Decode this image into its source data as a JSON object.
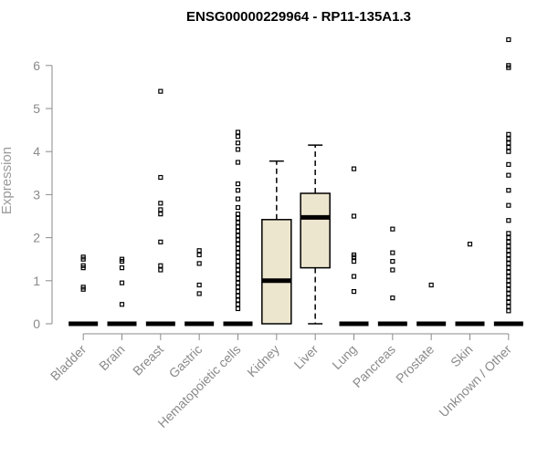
{
  "chart_data": {
    "type": "box",
    "title": "ENSG00000229964 - RP11-135A1.3",
    "xlabel": "",
    "ylabel": "Expression",
    "ylim": [
      0,
      6.7
    ],
    "yticks": [
      0,
      1,
      2,
      3,
      4,
      5,
      6
    ],
    "grid": false,
    "categories": [
      "Bladder",
      "Brain",
      "Breast",
      "Gastric",
      "Hematopoietic cells",
      "Kidney",
      "Liver",
      "Lung",
      "Pancreas",
      "Prostate",
      "Skin",
      "Unknown / Other"
    ],
    "boxes": [
      {
        "category": "Bladder",
        "q1": 0,
        "median": 0,
        "q3": 0,
        "whisker_low": 0,
        "whisker_high": 0,
        "outliers": [
          0.8,
          0.85,
          1.3,
          1.35,
          1.5,
          1.55
        ]
      },
      {
        "category": "Brain",
        "q1": 0,
        "median": 0,
        "q3": 0,
        "whisker_low": 0,
        "whisker_high": 0,
        "outliers": [
          0.45,
          0.95,
          1.3,
          1.45,
          1.5
        ]
      },
      {
        "category": "Breast",
        "q1": 0,
        "median": 0,
        "q3": 0,
        "whisker_low": 0,
        "whisker_high": 0,
        "outliers": [
          1.25,
          1.35,
          1.9,
          2.55,
          2.65,
          2.8,
          3.4,
          5.4
        ]
      },
      {
        "category": "Gastric",
        "q1": 0,
        "median": 0,
        "q3": 0,
        "whisker_low": 0,
        "whisker_high": 0,
        "outliers": [
          0.7,
          0.9,
          1.4,
          1.6,
          1.7
        ]
      },
      {
        "category": "Hematopoietic cells",
        "q1": 0,
        "median": 0,
        "q3": 0,
        "whisker_low": 0,
        "whisker_high": 0,
        "outliers": [
          0.35,
          0.45,
          0.55,
          0.65,
          0.75,
          0.85,
          0.95,
          1.05,
          1.15,
          1.25,
          1.35,
          1.45,
          1.55,
          1.65,
          1.75,
          1.85,
          1.95,
          2.05,
          2.15,
          2.25,
          2.35,
          2.45,
          2.55,
          2.7,
          2.9,
          3.1,
          3.25,
          3.75,
          4.05,
          4.2,
          4.35,
          4.45
        ]
      },
      {
        "category": "Kidney",
        "q1": 0,
        "median": 1.0,
        "q3": 2.42,
        "whisker_low": 0,
        "whisker_high": 3.78,
        "outliers": []
      },
      {
        "category": "Liver",
        "q1": 1.3,
        "median": 2.47,
        "q3": 3.03,
        "whisker_low": 0,
        "whisker_high": 4.15,
        "outliers": []
      },
      {
        "category": "Lung",
        "q1": 0,
        "median": 0,
        "q3": 0,
        "whisker_low": 0,
        "whisker_high": 0,
        "outliers": [
          0.75,
          1.1,
          1.45,
          1.55,
          1.6,
          2.5,
          3.6
        ]
      },
      {
        "category": "Pancreas",
        "q1": 0,
        "median": 0,
        "q3": 0,
        "whisker_low": 0,
        "whisker_high": 0,
        "outliers": [
          0.6,
          1.25,
          1.45,
          1.65,
          2.2
        ]
      },
      {
        "category": "Prostate",
        "q1": 0,
        "median": 0,
        "q3": 0,
        "whisker_low": 0,
        "whisker_high": 0,
        "outliers": [
          0.9
        ]
      },
      {
        "category": "Skin",
        "q1": 0,
        "median": 0,
        "q3": 0,
        "whisker_low": 0,
        "whisker_high": 0,
        "outliers": [
          1.85
        ]
      },
      {
        "category": "Unknown / Other",
        "q1": 0,
        "median": 0,
        "q3": 0,
        "whisker_low": 0,
        "whisker_high": 0,
        "outliers": [
          0.3,
          0.4,
          0.5,
          0.6,
          0.7,
          0.8,
          0.9,
          1.0,
          1.1,
          1.2,
          1.3,
          1.4,
          1.5,
          1.6,
          1.7,
          1.8,
          1.9,
          2.0,
          2.1,
          2.4,
          2.75,
          3.1,
          3.45,
          3.7,
          4.0,
          4.1,
          4.2,
          4.3,
          4.4,
          5.95,
          6.0,
          6.6
        ]
      }
    ],
    "colors": {
      "box_fill": "#ede6ce",
      "box_stroke": "#000000",
      "median": "#000000",
      "axis": "#8a8a8a",
      "tick_label": "#8a8a8a"
    }
  }
}
